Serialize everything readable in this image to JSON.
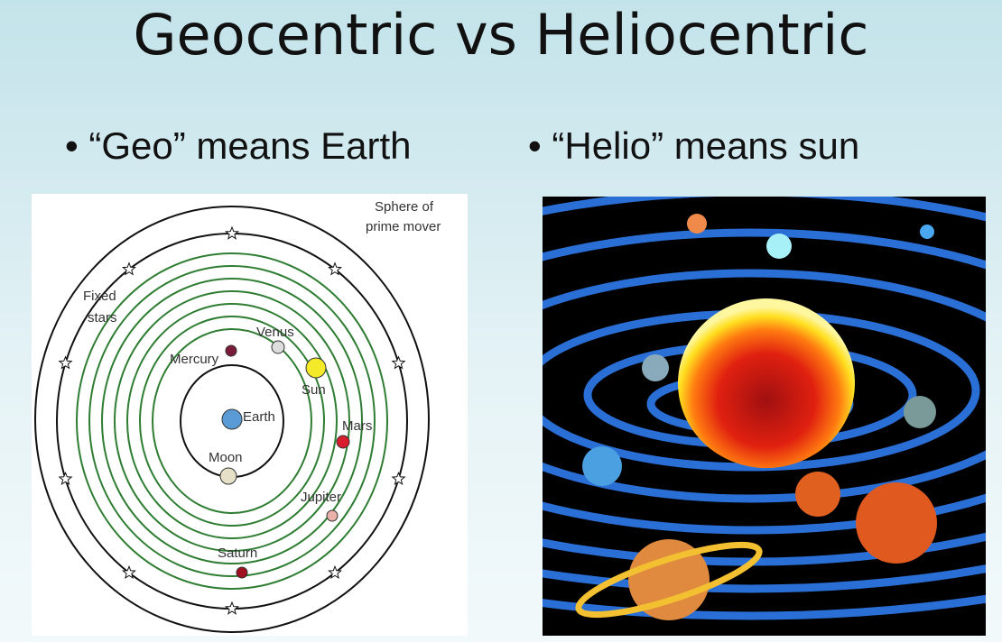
{
  "header": {
    "title": "Geocentric vs Heliocentric"
  },
  "bullets": [
    "“Geo” means Earth",
    "“Helio” means sun"
  ],
  "geocentric": {
    "labels": {
      "sphere": "Sphere of",
      "sphere2": "prime mover",
      "fixed": "Fixed",
      "fixed2": "stars",
      "venus": "Venus",
      "mercury": "Mercury",
      "sun": "Sun",
      "earth": "Earth",
      "mars": "Mars",
      "moon": "Moon",
      "jupiter": "Jupiter",
      "saturn": "Saturn"
    }
  }
}
